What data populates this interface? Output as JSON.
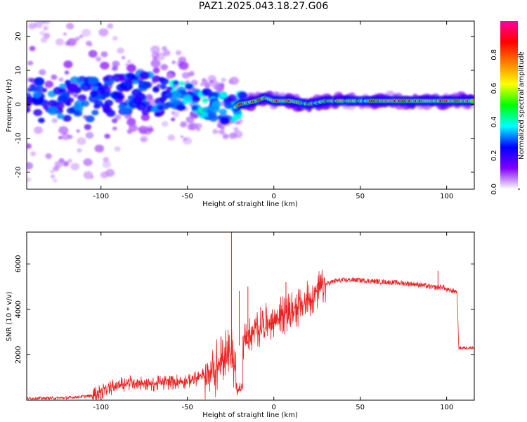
{
  "title": "PAZ1.2025.043.18.27.G06",
  "chart_data": [
    {
      "type": "heatmap",
      "xlabel": "Height of straight line (km)",
      "ylabel": "Frequency (Hz)",
      "xlim": [
        -143,
        116
      ],
      "ylim": [
        -25,
        24.5
      ],
      "xticks": [
        -100,
        -50,
        0,
        50,
        100
      ],
      "yticks": [
        -20,
        -10,
        0,
        10,
        20
      ],
      "colorbar": {
        "label": "Normalized spectral amplitude",
        "range": [
          0.0,
          1.0
        ],
        "ticks": [
          0.0,
          0.2,
          0.4,
          0.6,
          0.8
        ],
        "colors": [
          "#ffffff",
          "#8000ff",
          "#0000ff",
          "#00ffff",
          "#00ff00",
          "#ffff00",
          "#ff8000",
          "#ff0000",
          "#ff00a0"
        ]
      },
      "ridge": {
        "x": [
          -143,
          -120,
          -100,
          -80,
          -60,
          -50,
          -40,
          -30,
          -25,
          -20,
          -10,
          -5,
          0,
          10,
          20,
          30,
          50,
          70,
          90,
          100,
          116
        ],
        "frequency": [
          1,
          1,
          2,
          3,
          3,
          2,
          0,
          -1,
          -2,
          0,
          1,
          2,
          1,
          1,
          0,
          1,
          1,
          1,
          1,
          1,
          1
        ]
      }
    },
    {
      "type": "line",
      "xlabel": "Height of straight line (km)",
      "ylabel": "SNR (10 * v/v)",
      "xlim": [
        -143,
        116
      ],
      "ylim": [
        0,
        7400
      ],
      "xticks": [
        -100,
        -50,
        0,
        50,
        100
      ],
      "yticks": [
        2000,
        4000,
        6000
      ],
      "color": "#ee2222",
      "series": [
        {
          "x": [
            -143,
            -120,
            -105,
            -100,
            -95,
            -90,
            -85,
            -80,
            -75,
            -70,
            -65,
            -60,
            -55,
            -50,
            -45,
            -40,
            -35,
            -30,
            -27,
            -25,
            -23,
            -21,
            -20,
            -15,
            -10,
            -5,
            0,
            5,
            10,
            15,
            20,
            25,
            30,
            35,
            40,
            45,
            50,
            55,
            60,
            65,
            70,
            75,
            80,
            85,
            90,
            95,
            98,
            100,
            105,
            106,
            107,
            110,
            116
          ],
          "y": [
            80,
            100,
            200,
            380,
            520,
            680,
            740,
            800,
            760,
            720,
            760,
            800,
            830,
            860,
            950,
            1100,
            1300,
            1650,
            2200,
            2100,
            1700,
            2000,
            2400,
            2800,
            3100,
            3400,
            3500,
            3750,
            3900,
            4100,
            4400,
            4800,
            5100,
            5250,
            5280,
            5300,
            5280,
            5250,
            5220,
            5200,
            5180,
            5150,
            5120,
            5080,
            5000,
            4950,
            5000,
            4850,
            4800,
            4750,
            2300,
            2300,
            2320
          ]
        }
      ],
      "spikes": [
        {
          "x": -24.5,
          "y": 7400
        },
        {
          "x": -20,
          "y": 4800
        },
        {
          "x": -15,
          "y": 5000
        },
        {
          "x": 7,
          "y": 5200
        },
        {
          "x": 95,
          "y": 5700
        }
      ]
    }
  ]
}
